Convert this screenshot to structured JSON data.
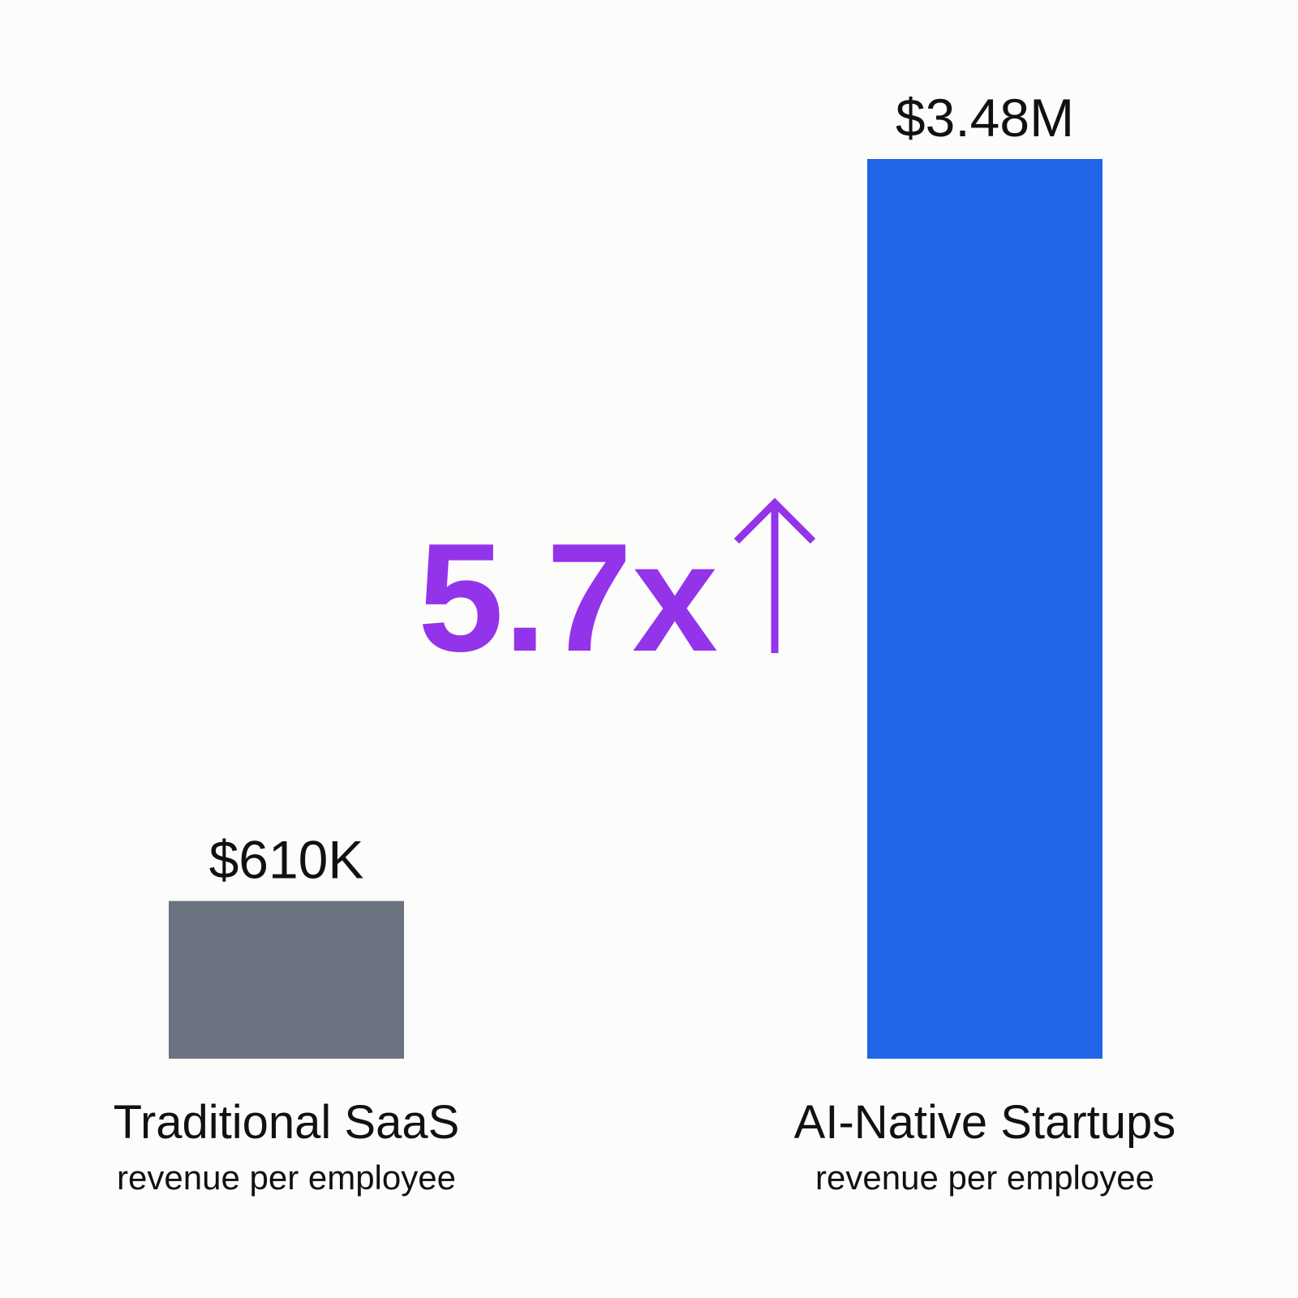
{
  "chart_data": {
    "type": "bar",
    "categories": [
      "Traditional SaaS",
      "AI-Native Startups"
    ],
    "category_sublabels": [
      "revenue per employee",
      "revenue per employee"
    ],
    "values": [
      610000,
      3480000
    ],
    "value_labels": [
      "$610K",
      "$3.48M"
    ],
    "colors": [
      "#6b7280",
      "#2166e8"
    ],
    "ylim": [
      0,
      3480000
    ],
    "annotation": "5.7x",
    "annotation_color": "#9333ea"
  }
}
